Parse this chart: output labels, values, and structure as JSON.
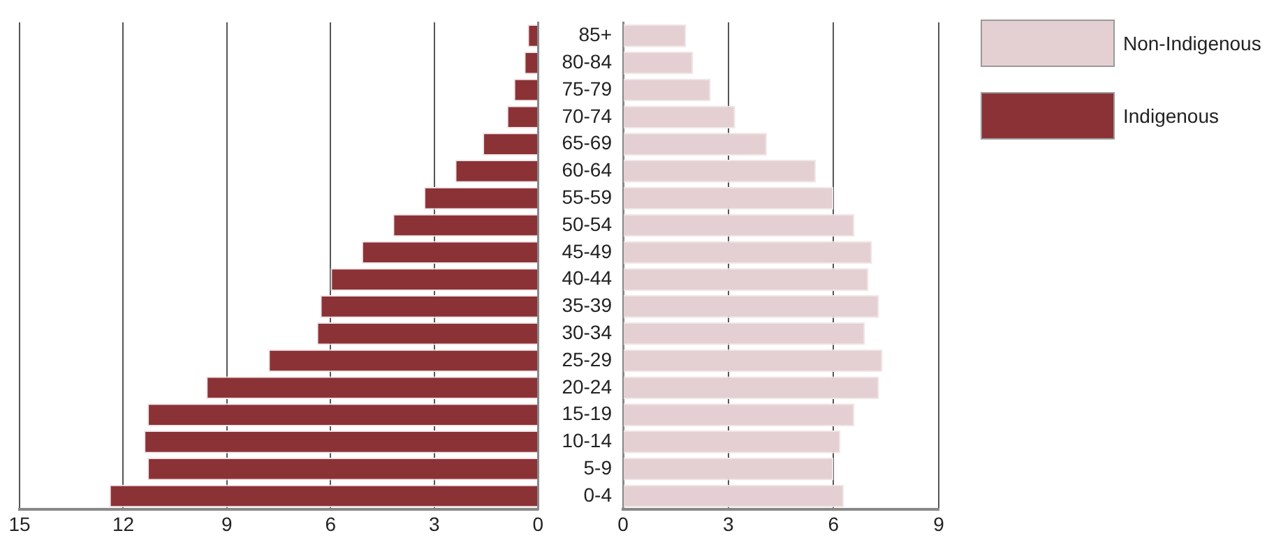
{
  "chart_data": [
    {
      "type": "bar",
      "orientation": "horizontal",
      "categories": [
        null,
        null,
        null,
        null,
        null,
        null,
        null,
        null,
        null,
        null,
        null,
        null,
        null,
        null,
        null,
        null,
        null,
        null
      ],
      "series": [
        {
          "name": "Indigenous",
          "color": "#8b3236",
          "values": [
            0.3,
            0.4,
            0.7,
            0.9,
            1.6,
            2.4,
            3.3,
            4.2,
            5.1,
            6.0,
            6.3,
            6.4,
            7.8,
            9.6,
            11.3,
            11.4,
            11.3,
            12.4
          ]
        }
      ],
      "xlim": [
        15,
        0
      ],
      "xticks": [
        15,
        12,
        9,
        6,
        3,
        0
      ],
      "grid": "x",
      "legend": "right",
      "tick_labels": "x"
    },
    {
      "type": "bar",
      "orientation": "horizontal",
      "categories": [
        "85+",
        "80-84",
        "75-79",
        "70-74",
        "65-69",
        "60-64",
        "55-59",
        "50-54",
        "45-49",
        "40-44",
        "35-39",
        "30-34",
        "25-29",
        "20-24",
        "15-19",
        "10-14",
        "5-9",
        "0-4"
      ],
      "series": [
        {
          "name": "Non-Indigenous",
          "color": "#e4d0d2",
          "values": [
            1.8,
            2.0,
            2.5,
            3.2,
            4.1,
            5.5,
            6.0,
            6.6,
            7.1,
            7.0,
            7.3,
            6.9,
            7.4,
            7.3,
            6.6,
            6.2,
            6.0,
            6.3
          ]
        }
      ],
      "xlim": [
        0,
        9
      ],
      "xticks": [
        0,
        3,
        6,
        9
      ],
      "grid": "x",
      "legend": "right"
    }
  ]
}
